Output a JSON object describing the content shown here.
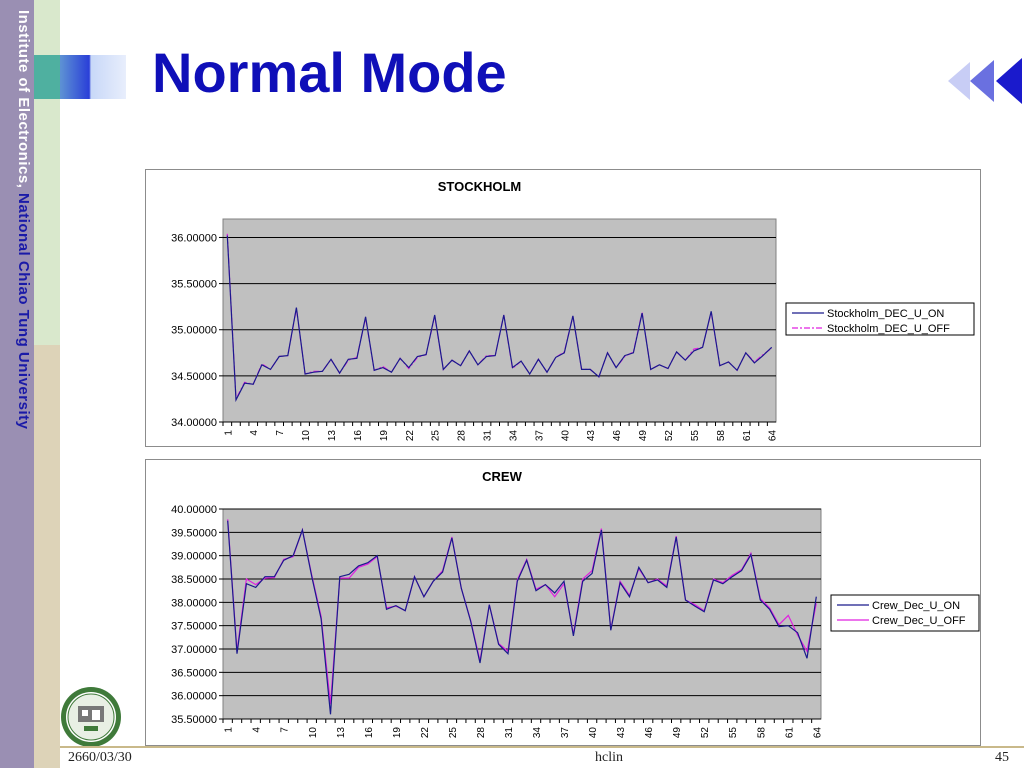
{
  "sidebar": {
    "institute": "Institute of Electronics, ",
    "university": "National Chiao Tung University"
  },
  "slide": {
    "title": "Normal Mode"
  },
  "footer": {
    "date": "2660/03/30",
    "author": "hclin",
    "page": "45"
  },
  "icons": {
    "nav": "rewind-arrows-icon",
    "logo": "university-seal-icon"
  },
  "colors": {
    "on_series": "#1a1a8c",
    "off_series": "#e020e0",
    "plot_bg": "#c0c0c0",
    "title": "#0f0fb8"
  },
  "chart_data": [
    {
      "type": "line",
      "title": "STOCKHOLM",
      "xlabel": "",
      "ylabel": "",
      "ylim": [
        34.0,
        36.2
      ],
      "yticks": [
        "34.00000",
        "34.50000",
        "35.00000",
        "35.50000",
        "36.00000"
      ],
      "xticks": [
        "1",
        "4",
        "7",
        "10",
        "13",
        "16",
        "19",
        "22",
        "25",
        "28",
        "31",
        "34",
        "37",
        "40",
        "43",
        "46",
        "49",
        "52",
        "55",
        "58",
        "61",
        "64"
      ],
      "grid": true,
      "legend_position": "right",
      "x": [
        1,
        2,
        3,
        4,
        5,
        6,
        7,
        8,
        9,
        10,
        11,
        12,
        13,
        14,
        15,
        16,
        17,
        18,
        19,
        20,
        21,
        22,
        23,
        24,
        25,
        26,
        27,
        28,
        29,
        30,
        31,
        32,
        33,
        34,
        35,
        36,
        37,
        38,
        39,
        40,
        41,
        42,
        43,
        44,
        45,
        46,
        47,
        48,
        49,
        50,
        51,
        52,
        53,
        54,
        55,
        56,
        57,
        58,
        59,
        60,
        61,
        62,
        63,
        64
      ],
      "series": [
        {
          "name": "Stockholm_DEC_U_ON",
          "style": "solid",
          "color": "#1a1a8c",
          "values": [
            36.02,
            34.24,
            34.42,
            34.41,
            34.62,
            34.57,
            34.71,
            34.72,
            35.24,
            34.52,
            34.54,
            34.55,
            34.68,
            34.53,
            34.68,
            34.69,
            35.14,
            34.56,
            34.59,
            34.54,
            34.69,
            34.59,
            34.71,
            34.73,
            35.16,
            34.57,
            34.67,
            34.61,
            34.77,
            34.62,
            34.71,
            34.72,
            35.16,
            34.59,
            34.66,
            34.52,
            34.68,
            34.54,
            34.7,
            34.75,
            35.15,
            34.57,
            34.57,
            34.49,
            34.75,
            34.59,
            34.72,
            34.75,
            35.18,
            34.57,
            34.62,
            34.58,
            34.76,
            34.67,
            34.77,
            34.81,
            35.2,
            34.61,
            34.65,
            34.56,
            34.75,
            34.64,
            34.72,
            34.81
          ]
        },
        {
          "name": "Stockholm_DEC_U_OFF",
          "style": "dash-dot",
          "color": "#e020e0",
          "values": [
            36.04,
            34.25,
            34.43,
            34.41,
            34.63,
            34.57,
            34.71,
            34.72,
            35.23,
            34.52,
            34.55,
            34.55,
            34.68,
            34.53,
            34.67,
            34.7,
            35.13,
            34.56,
            34.6,
            34.54,
            34.69,
            34.58,
            34.7,
            34.73,
            35.15,
            34.57,
            34.67,
            34.61,
            34.77,
            34.62,
            34.72,
            34.72,
            35.16,
            34.58,
            34.66,
            34.52,
            34.68,
            34.54,
            34.7,
            34.76,
            35.15,
            34.57,
            34.57,
            34.49,
            34.75,
            34.59,
            34.71,
            34.76,
            35.19,
            34.57,
            34.62,
            34.58,
            34.76,
            34.67,
            34.79,
            34.81,
            35.19,
            34.61,
            34.65,
            34.56,
            34.75,
            34.65,
            34.73,
            34.8
          ]
        }
      ]
    },
    {
      "type": "line",
      "title": "CREW",
      "xlabel": "",
      "ylabel": "",
      "ylim": [
        35.5,
        40.0
      ],
      "yticks": [
        "35.50000",
        "36.00000",
        "36.50000",
        "37.00000",
        "37.50000",
        "38.00000",
        "38.50000",
        "39.00000",
        "39.50000",
        "40.00000"
      ],
      "xticks": [
        "1",
        "4",
        "7",
        "10",
        "13",
        "16",
        "19",
        "22",
        "25",
        "28",
        "31",
        "34",
        "37",
        "40",
        "43",
        "46",
        "49",
        "52",
        "55",
        "58",
        "61",
        "64"
      ],
      "grid": true,
      "legend_position": "right",
      "x": [
        1,
        2,
        3,
        4,
        5,
        6,
        7,
        8,
        9,
        10,
        11,
        12,
        13,
        14,
        15,
        16,
        17,
        18,
        19,
        20,
        21,
        22,
        23,
        24,
        25,
        26,
        27,
        28,
        29,
        30,
        31,
        32,
        33,
        34,
        35,
        36,
        37,
        38,
        39,
        40,
        41,
        42,
        43,
        44,
        45,
        46,
        47,
        48,
        49,
        50,
        51,
        52,
        53,
        54,
        55,
        56,
        57,
        58,
        59,
        60,
        61,
        62,
        63,
        64
      ],
      "series": [
        {
          "name": "Crew_Dec_U_ON",
          "color": "#1a1a8c",
          "values": [
            39.75,
            36.9,
            38.4,
            38.32,
            38.55,
            38.55,
            38.9,
            39.0,
            39.55,
            38.55,
            37.65,
            35.6,
            38.55,
            38.6,
            38.78,
            38.85,
            39.0,
            37.85,
            37.93,
            37.82,
            38.55,
            38.12,
            38.45,
            38.65,
            39.38,
            38.3,
            37.6,
            36.7,
            37.95,
            37.1,
            36.9,
            38.45,
            38.9,
            38.25,
            38.38,
            38.2,
            38.45,
            37.28,
            38.45,
            38.62,
            39.55,
            37.4,
            38.42,
            38.12,
            38.75,
            38.42,
            38.48,
            38.32,
            39.4,
            38.05,
            37.92,
            37.8,
            38.48,
            38.4,
            38.55,
            38.68,
            39.02,
            38.05,
            37.85,
            37.48,
            37.5,
            37.35,
            36.8,
            38.12
          ]
        },
        {
          "name": "Crew_Dec_U_OFF",
          "color": "#e020e0",
          "values": [
            39.78,
            36.95,
            38.5,
            38.38,
            38.52,
            38.53,
            38.92,
            38.98,
            39.55,
            38.58,
            37.7,
            35.82,
            38.52,
            38.52,
            38.75,
            38.82,
            38.98,
            37.88,
            37.92,
            37.82,
            38.55,
            38.12,
            38.45,
            38.68,
            39.4,
            38.3,
            37.62,
            36.75,
            37.95,
            37.12,
            36.95,
            38.48,
            38.92,
            38.28,
            38.38,
            38.12,
            38.4,
            37.32,
            38.5,
            38.68,
            39.58,
            37.42,
            38.45,
            38.15,
            38.72,
            38.42,
            38.5,
            38.35,
            39.42,
            38.05,
            37.95,
            37.82,
            38.5,
            38.42,
            38.58,
            38.7,
            39.05,
            38.08,
            37.88,
            37.52,
            37.72,
            37.3,
            36.95,
            37.98
          ]
        }
      ]
    }
  ]
}
